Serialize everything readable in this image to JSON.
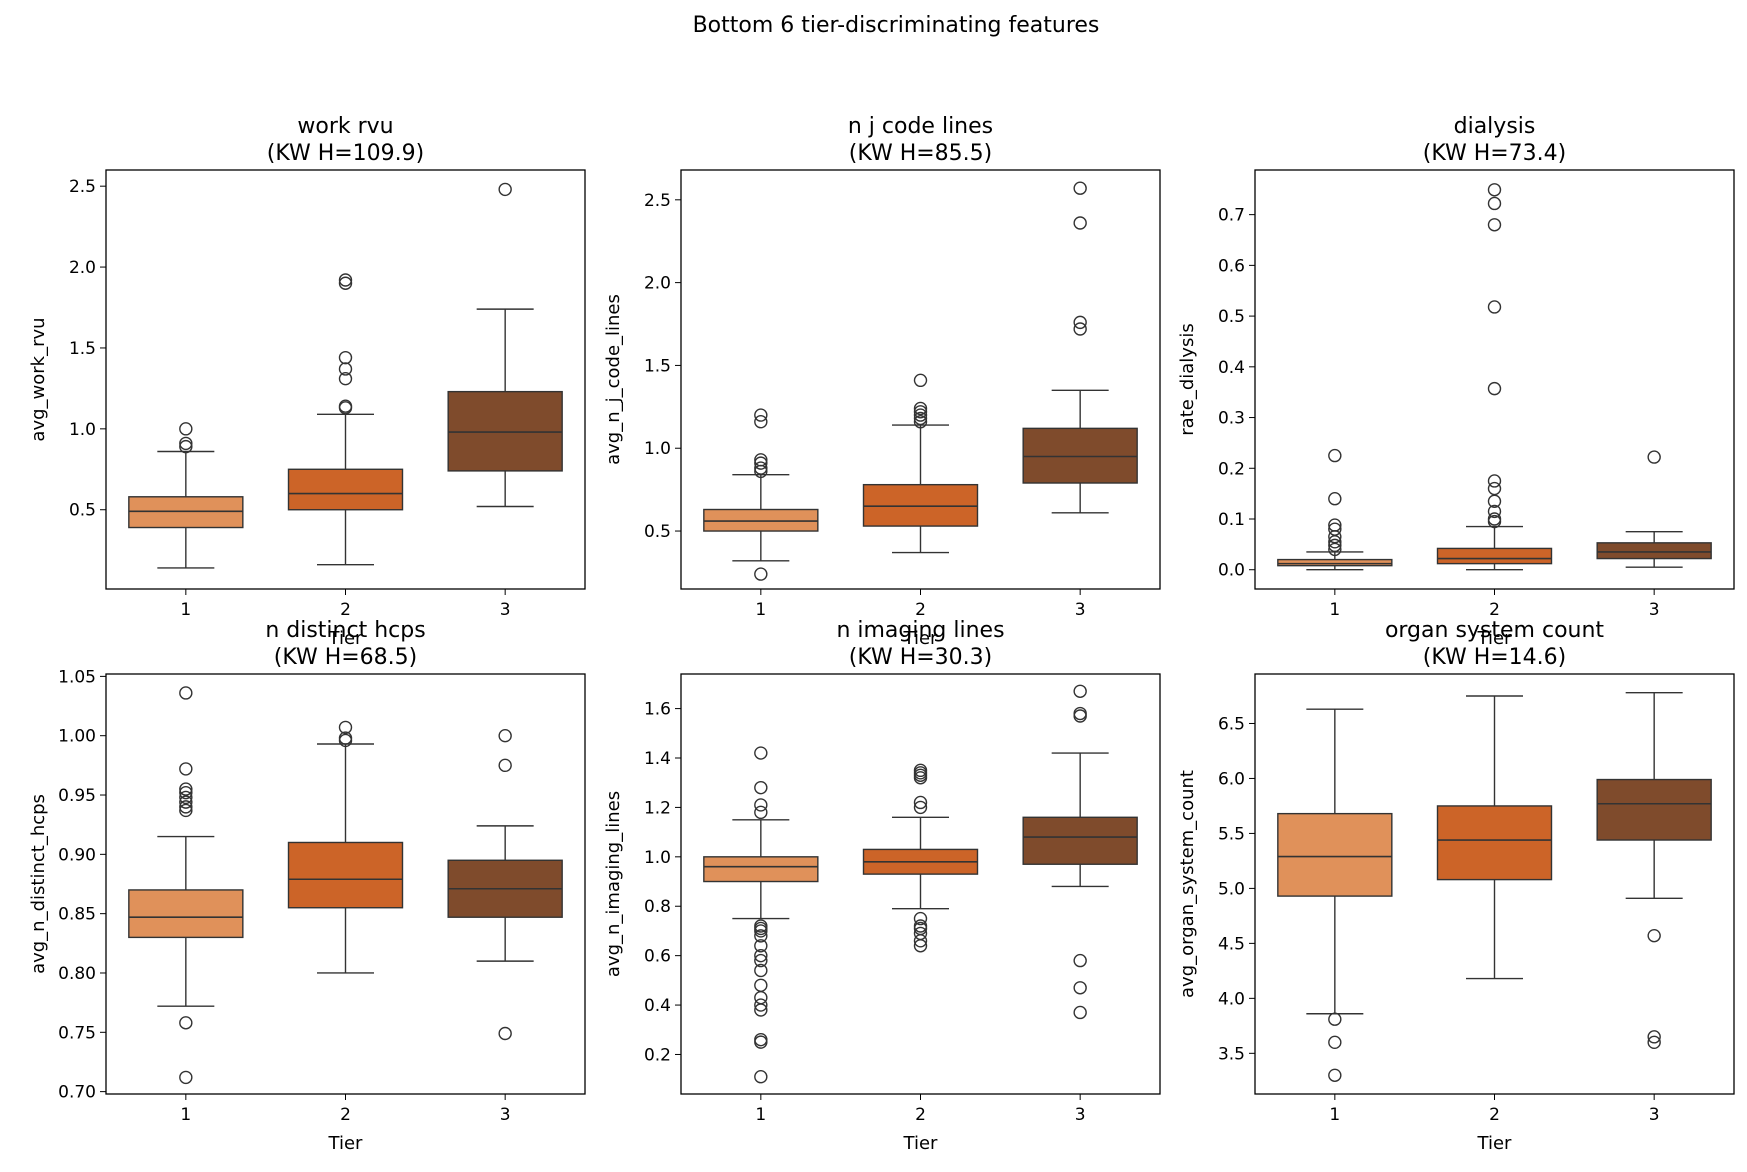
{
  "figure_title": "Bottom 6 tier-discriminating features",
  "colors": {
    "tier_1": "#e0915a",
    "tier_2": "#cc6428",
    "tier_3": "#7f4b2c",
    "line": "#333333",
    "axis": "#000000"
  },
  "chart_data": [
    {
      "type": "box",
      "title": "work rvu",
      "subtitle": "(KW H=109.9)",
      "xlabel": "Tier",
      "ylabel": "avg_work_rvu",
      "ylim": [
        0.01,
        2.6
      ],
      "yticks": [
        0.5,
        1.0,
        1.5,
        2.0,
        2.5
      ],
      "yfmt": 1,
      "categories": [
        "1",
        "2",
        "3"
      ],
      "boxes": [
        {
          "tier": "1",
          "whislo": 0.14,
          "q1": 0.39,
          "med": 0.49,
          "q3": 0.58,
          "whishi": 0.86,
          "fliers": [
            0.89,
            0.91,
            1.0
          ]
        },
        {
          "tier": "2",
          "whislo": 0.16,
          "q1": 0.5,
          "med": 0.6,
          "q3": 0.75,
          "whishi": 1.09,
          "fliers": [
            1.13,
            1.14,
            1.31,
            1.37,
            1.44,
            1.9,
            1.92
          ]
        },
        {
          "tier": "3",
          "whislo": 0.52,
          "q1": 0.74,
          "med": 0.98,
          "q3": 1.23,
          "whishi": 1.74,
          "fliers": [
            2.48
          ]
        }
      ]
    },
    {
      "type": "box",
      "title": "n j code lines",
      "subtitle": "(KW H=85.5)",
      "xlabel": "Tier",
      "ylabel": "avg_n_j_code_lines",
      "ylim": [
        0.15,
        2.68
      ],
      "yticks": [
        0.5,
        1.0,
        1.5,
        2.0,
        2.5
      ],
      "yfmt": 1,
      "categories": [
        "1",
        "2",
        "3"
      ],
      "boxes": [
        {
          "tier": "1",
          "whislo": 0.32,
          "q1": 0.5,
          "med": 0.56,
          "q3": 0.63,
          "whishi": 0.84,
          "fliers": [
            0.24,
            0.86,
            0.88,
            0.91,
            0.93,
            1.16,
            1.2
          ]
        },
        {
          "tier": "2",
          "whislo": 0.37,
          "q1": 0.53,
          "med": 0.65,
          "q3": 0.78,
          "whishi": 1.14,
          "fliers": [
            1.16,
            1.18,
            1.2,
            1.22,
            1.24,
            1.41
          ]
        },
        {
          "tier": "3",
          "whislo": 0.61,
          "q1": 0.79,
          "med": 0.95,
          "q3": 1.12,
          "whishi": 1.35,
          "fliers": [
            1.72,
            1.76,
            2.36,
            2.57
          ]
        }
      ]
    },
    {
      "type": "box",
      "title": "dialysis",
      "subtitle": "(KW H=73.4)",
      "xlabel": "Tier",
      "ylabel": "rate_dialysis",
      "ylim": [
        -0.038,
        0.788
      ],
      "yticks": [
        0.0,
        0.1,
        0.2,
        0.3,
        0.4,
        0.5,
        0.6,
        0.7
      ],
      "yfmt": 1,
      "categories": [
        "1",
        "2",
        "3"
      ],
      "boxes": [
        {
          "tier": "1",
          "whislo": 0.0,
          "q1": 0.008,
          "med": 0.012,
          "q3": 0.02,
          "whishi": 0.035,
          "fliers": [
            0.04,
            0.048,
            0.055,
            0.065,
            0.08,
            0.088,
            0.14,
            0.225
          ]
        },
        {
          "tier": "2",
          "whislo": 0.0,
          "q1": 0.012,
          "med": 0.022,
          "q3": 0.042,
          "whishi": 0.085,
          "fliers": [
            0.095,
            0.1,
            0.115,
            0.135,
            0.16,
            0.175,
            0.357,
            0.518,
            0.68,
            0.722,
            0.749
          ]
        },
        {
          "tier": "3",
          "whislo": 0.005,
          "q1": 0.022,
          "med": 0.035,
          "q3": 0.053,
          "whishi": 0.075,
          "fliers": [
            0.222
          ]
        }
      ]
    },
    {
      "type": "box",
      "title": "n distinct hcps",
      "subtitle": "(KW H=68.5)",
      "xlabel": "Tier",
      "ylabel": "avg_n_distinct_hcps",
      "ylim": [
        0.698,
        1.052
      ],
      "yticks": [
        0.7,
        0.75,
        0.8,
        0.85,
        0.9,
        0.95,
        1.0,
        1.05
      ],
      "yfmt": 2,
      "categories": [
        "1",
        "2",
        "3"
      ],
      "boxes": [
        {
          "tier": "1",
          "whislo": 0.772,
          "q1": 0.83,
          "med": 0.847,
          "q3": 0.87,
          "whishi": 0.915,
          "fliers": [
            0.712,
            0.758,
            0.937,
            0.94,
            0.944,
            0.948,
            0.952,
            0.955,
            0.972,
            1.036
          ]
        },
        {
          "tier": "2",
          "whislo": 0.8,
          "q1": 0.855,
          "med": 0.879,
          "q3": 0.91,
          "whishi": 0.993,
          "fliers": [
            0.996,
            0.998,
            1.007
          ]
        },
        {
          "tier": "3",
          "whislo": 0.81,
          "q1": 0.847,
          "med": 0.871,
          "q3": 0.895,
          "whishi": 0.924,
          "fliers": [
            0.749,
            0.975,
            1.0
          ]
        }
      ]
    },
    {
      "type": "box",
      "title": "n imaging lines",
      "subtitle": "(KW H=30.3)",
      "xlabel": "Tier",
      "ylabel": "avg_n_imaging_lines",
      "ylim": [
        0.04,
        1.74
      ],
      "yticks": [
        0.2,
        0.4,
        0.6,
        0.8,
        1.0,
        1.2,
        1.4,
        1.6
      ],
      "yfmt": 1,
      "categories": [
        "1",
        "2",
        "3"
      ],
      "boxes": [
        {
          "tier": "1",
          "whislo": 0.75,
          "q1": 0.9,
          "med": 0.96,
          "q3": 1.0,
          "whishi": 1.15,
          "fliers": [
            0.11,
            0.25,
            0.26,
            0.38,
            0.4,
            0.43,
            0.48,
            0.54,
            0.58,
            0.6,
            0.64,
            0.68,
            0.7,
            0.71,
            0.72,
            1.18,
            1.21,
            1.28,
            1.42
          ]
        },
        {
          "tier": "2",
          "whislo": 0.79,
          "q1": 0.93,
          "med": 0.98,
          "q3": 1.03,
          "whishi": 1.16,
          "fliers": [
            0.64,
            0.66,
            0.69,
            0.71,
            0.72,
            0.75,
            1.2,
            1.22,
            1.32,
            1.33,
            1.34,
            1.35
          ]
        },
        {
          "tier": "3",
          "whislo": 0.88,
          "q1": 0.97,
          "med": 1.08,
          "q3": 1.16,
          "whishi": 1.42,
          "fliers": [
            0.37,
            0.47,
            0.58,
            1.57,
            1.58,
            1.67
          ]
        }
      ]
    },
    {
      "type": "box",
      "title": "organ system count",
      "subtitle": "(KW H=14.6)",
      "xlabel": "Tier",
      "ylabel": "avg_organ_system_count",
      "ylim": [
        3.13,
        6.95
      ],
      "yticks": [
        3.5,
        4.0,
        4.5,
        5.0,
        5.5,
        6.0,
        6.5
      ],
      "yfmt": 1,
      "categories": [
        "1",
        "2",
        "3"
      ],
      "boxes": [
        {
          "tier": "1",
          "whislo": 3.86,
          "q1": 4.93,
          "med": 5.29,
          "q3": 5.68,
          "whishi": 6.63,
          "fliers": [
            3.3,
            3.6,
            3.81
          ]
        },
        {
          "tier": "2",
          "whislo": 4.18,
          "q1": 5.08,
          "med": 5.44,
          "q3": 5.75,
          "whishi": 6.75,
          "fliers": []
        },
        {
          "tier": "3",
          "whislo": 4.91,
          "q1": 5.44,
          "med": 5.77,
          "q3": 5.99,
          "whishi": 6.78,
          "fliers": [
            3.6,
            3.65,
            4.57
          ]
        }
      ]
    }
  ]
}
